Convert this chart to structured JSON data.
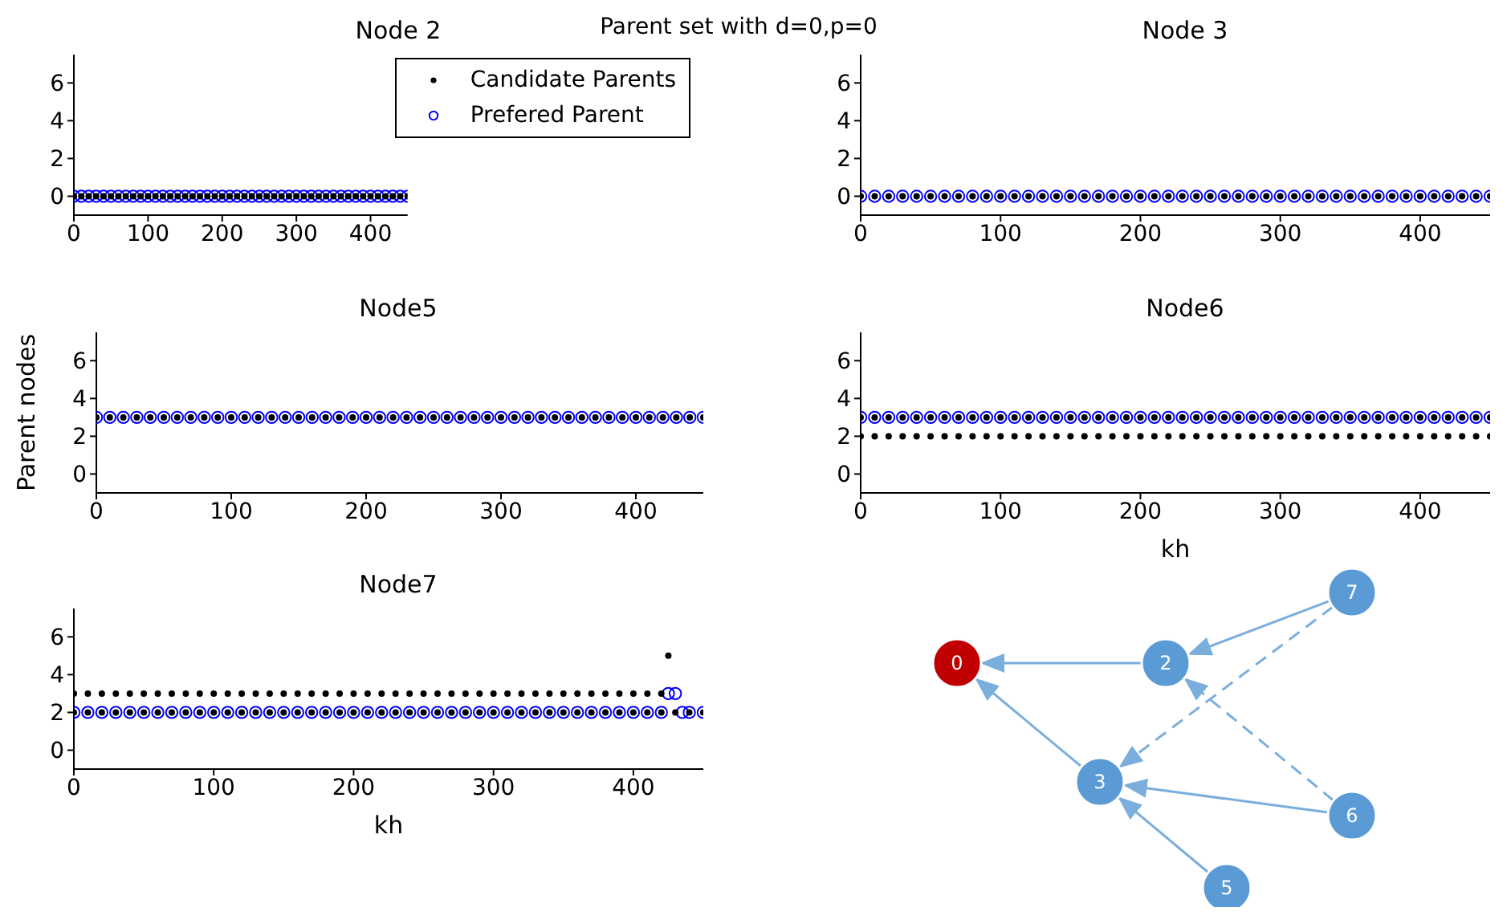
{
  "chart_data": [
    {
      "type": "scatter",
      "title": "Node 2",
      "annotations": [
        "Parent set with d=0,p=0"
      ],
      "xlim": [
        0,
        450
      ],
      "xticks": [
        0,
        100,
        200,
        300,
        400
      ],
      "ylim": [
        -1,
        7.5
      ],
      "yticks": [
        0,
        2,
        4,
        6
      ],
      "legend": "top right",
      "series": [
        {
          "name": "Candidate Parents",
          "color": "#000000",
          "x": [
            0,
            10,
            20,
            30,
            40,
            50,
            60,
            70,
            80,
            90,
            100,
            110,
            120,
            130,
            140,
            150,
            160,
            170,
            180,
            190,
            200,
            210,
            220,
            230,
            240,
            250,
            260,
            270,
            280,
            290,
            300,
            310,
            320,
            330,
            340,
            350,
            360,
            370,
            380,
            390,
            400,
            410,
            420,
            430,
            440,
            450
          ],
          "values": [
            0,
            0,
            0,
            0,
            0,
            0,
            0,
            0,
            0,
            0,
            0,
            0,
            0,
            0,
            0,
            0,
            0,
            0,
            0,
            0,
            0,
            0,
            0,
            0,
            0,
            0,
            0,
            0,
            0,
            0,
            0,
            0,
            0,
            0,
            0,
            0,
            0,
            0,
            0,
            0,
            0,
            0,
            0,
            0,
            0,
            0
          ]
        },
        {
          "name": "Prefered Parent",
          "color": "#0000ff",
          "x": [
            0,
            10,
            20,
            30,
            40,
            50,
            60,
            70,
            80,
            90,
            100,
            110,
            120,
            130,
            140,
            150,
            160,
            170,
            180,
            190,
            200,
            210,
            220,
            230,
            240,
            250,
            260,
            270,
            280,
            290,
            300,
            310,
            320,
            330,
            340,
            350,
            360,
            370,
            380,
            390,
            400,
            410,
            420,
            430,
            440,
            450
          ],
          "values": [
            0,
            0,
            0,
            0,
            0,
            0,
            0,
            0,
            0,
            0,
            0,
            0,
            0,
            0,
            0,
            0,
            0,
            0,
            0,
            0,
            0,
            0,
            0,
            0,
            0,
            0,
            0,
            0,
            0,
            0,
            0,
            0,
            0,
            0,
            0,
            0,
            0,
            0,
            0,
            0,
            0,
            0,
            0,
            0,
            0,
            0
          ]
        }
      ]
    },
    {
      "type": "scatter",
      "title": "Node 3",
      "xlim": [
        0,
        450
      ],
      "xticks": [
        0,
        100,
        200,
        300,
        400
      ],
      "ylim": [
        -1,
        7.5
      ],
      "yticks": [
        0,
        2,
        4,
        6
      ],
      "series": [
        {
          "color": "#000000",
          "x": [
            0,
            10,
            20,
            30,
            40,
            50,
            60,
            70,
            80,
            90,
            100,
            110,
            120,
            130,
            140,
            150,
            160,
            170,
            180,
            190,
            200,
            210,
            220,
            230,
            240,
            250,
            260,
            270,
            280,
            290,
            300,
            310,
            320,
            330,
            340,
            350,
            360,
            370,
            380,
            390,
            400,
            410,
            420,
            430,
            440,
            450
          ],
          "values": [
            0,
            0,
            0,
            0,
            0,
            0,
            0,
            0,
            0,
            0,
            0,
            0,
            0,
            0,
            0,
            0,
            0,
            0,
            0,
            0,
            0,
            0,
            0,
            0,
            0,
            0,
            0,
            0,
            0,
            0,
            0,
            0,
            0,
            0,
            0,
            0,
            0,
            0,
            0,
            0,
            0,
            0,
            0,
            0,
            0,
            0
          ]
        },
        {
          "color": "#0000ff",
          "x": [
            0,
            10,
            20,
            30,
            40,
            50,
            60,
            70,
            80,
            90,
            100,
            110,
            120,
            130,
            140,
            150,
            160,
            170,
            180,
            190,
            200,
            210,
            220,
            230,
            240,
            250,
            260,
            270,
            280,
            290,
            300,
            310,
            320,
            330,
            340,
            350,
            360,
            370,
            380,
            390,
            400,
            410,
            420,
            430,
            440,
            450
          ],
          "values": [
            0,
            0,
            0,
            0,
            0,
            0,
            0,
            0,
            0,
            0,
            0,
            0,
            0,
            0,
            0,
            0,
            0,
            0,
            0,
            0,
            0,
            0,
            0,
            0,
            0,
            0,
            0,
            0,
            0,
            0,
            0,
            0,
            0,
            0,
            0,
            0,
            0,
            0,
            0,
            0,
            0,
            0,
            0,
            0,
            0,
            0
          ]
        }
      ]
    },
    {
      "type": "scatter",
      "title": "Node5",
      "ylabel": "Parent nodes",
      "xlim": [
        0,
        450
      ],
      "xticks": [
        0,
        100,
        200,
        300,
        400
      ],
      "ylim": [
        -1,
        7.5
      ],
      "yticks": [
        0,
        2,
        4,
        6
      ],
      "series": [
        {
          "color": "#000000",
          "x": [
            0,
            10,
            20,
            30,
            40,
            50,
            60,
            70,
            80,
            90,
            100,
            110,
            120,
            130,
            140,
            150,
            160,
            170,
            180,
            190,
            200,
            210,
            220,
            230,
            240,
            250,
            260,
            270,
            280,
            290,
            300,
            310,
            320,
            330,
            340,
            350,
            360,
            370,
            380,
            390,
            400,
            410,
            420,
            430,
            440,
            450
          ],
          "values": [
            3,
            3,
            3,
            3,
            3,
            3,
            3,
            3,
            3,
            3,
            3,
            3,
            3,
            3,
            3,
            3,
            3,
            3,
            3,
            3,
            3,
            3,
            3,
            3,
            3,
            3,
            3,
            3,
            3,
            3,
            3,
            3,
            3,
            3,
            3,
            3,
            3,
            3,
            3,
            3,
            3,
            3,
            3,
            3,
            3,
            3
          ]
        },
        {
          "color": "#0000ff",
          "x": [
            0,
            10,
            20,
            30,
            40,
            50,
            60,
            70,
            80,
            90,
            100,
            110,
            120,
            130,
            140,
            150,
            160,
            170,
            180,
            190,
            200,
            210,
            220,
            230,
            240,
            250,
            260,
            270,
            280,
            290,
            300,
            310,
            320,
            330,
            340,
            350,
            360,
            370,
            380,
            390,
            400,
            410,
            420,
            430,
            440,
            450
          ],
          "values": [
            3,
            3,
            3,
            3,
            3,
            3,
            3,
            3,
            3,
            3,
            3,
            3,
            3,
            3,
            3,
            3,
            3,
            3,
            3,
            3,
            3,
            3,
            3,
            3,
            3,
            3,
            3,
            3,
            3,
            3,
            3,
            3,
            3,
            3,
            3,
            3,
            3,
            3,
            3,
            3,
            3,
            3,
            3,
            3,
            3,
            3
          ]
        }
      ]
    },
    {
      "type": "scatter",
      "title": "Node6",
      "xlabel": "kh",
      "xlim": [
        0,
        450
      ],
      "xticks": [
        0,
        100,
        200,
        300,
        400
      ],
      "ylim": [
        -1,
        7.5
      ],
      "yticks": [
        0,
        2,
        4,
        6
      ],
      "series": [
        {
          "color": "#000000",
          "x": [
            0,
            10,
            20,
            30,
            40,
            50,
            60,
            70,
            80,
            90,
            100,
            110,
            120,
            130,
            140,
            150,
            160,
            170,
            180,
            190,
            200,
            210,
            220,
            230,
            240,
            250,
            260,
            270,
            280,
            290,
            300,
            310,
            320,
            330,
            340,
            350,
            360,
            370,
            380,
            390,
            400,
            410,
            420,
            430,
            440,
            450,
            0,
            10,
            20,
            30,
            40,
            50,
            60,
            70,
            80,
            90,
            100,
            110,
            120,
            130,
            140,
            150,
            160,
            170,
            180,
            190,
            200,
            210,
            220,
            230,
            240,
            250,
            260,
            270,
            280,
            290,
            300,
            310,
            320,
            330,
            340,
            350,
            360,
            370,
            380,
            390,
            400,
            410,
            420,
            430,
            440,
            450
          ],
          "values": [
            2,
            2,
            2,
            2,
            2,
            2,
            2,
            2,
            2,
            2,
            2,
            2,
            2,
            2,
            2,
            2,
            2,
            2,
            2,
            2,
            2,
            2,
            2,
            2,
            2,
            2,
            2,
            2,
            2,
            2,
            2,
            2,
            2,
            2,
            2,
            2,
            2,
            2,
            2,
            2,
            2,
            2,
            2,
            2,
            2,
            2,
            3,
            3,
            3,
            3,
            3,
            3,
            3,
            3,
            3,
            3,
            3,
            3,
            3,
            3,
            3,
            3,
            3,
            3,
            3,
            3,
            3,
            3,
            3,
            3,
            3,
            3,
            3,
            3,
            3,
            3,
            3,
            3,
            3,
            3,
            3,
            3,
            3,
            3,
            3,
            3,
            3,
            3,
            3,
            3,
            3,
            3
          ]
        },
        {
          "color": "#0000ff",
          "x": [
            0,
            10,
            20,
            30,
            40,
            50,
            60,
            70,
            80,
            90,
            100,
            110,
            120,
            130,
            140,
            150,
            160,
            170,
            180,
            190,
            200,
            210,
            220,
            230,
            240,
            250,
            260,
            270,
            280,
            290,
            300,
            310,
            320,
            330,
            340,
            350,
            360,
            370,
            380,
            390,
            400,
            410,
            420,
            430,
            440,
            450
          ],
          "values": [
            3,
            3,
            3,
            3,
            3,
            3,
            3,
            3,
            3,
            3,
            3,
            3,
            3,
            3,
            3,
            3,
            3,
            3,
            3,
            3,
            3,
            3,
            3,
            3,
            3,
            3,
            3,
            3,
            3,
            3,
            3,
            3,
            3,
            3,
            3,
            3,
            3,
            3,
            3,
            3,
            3,
            3,
            3,
            3,
            3,
            3
          ]
        }
      ]
    },
    {
      "type": "scatter",
      "title": "Node7",
      "xlabel": "kh",
      "xlim": [
        0,
        450
      ],
      "xticks": [
        0,
        100,
        200,
        300,
        400
      ],
      "ylim": [
        -1,
        7.5
      ],
      "yticks": [
        0,
        2,
        4,
        6
      ],
      "series": [
        {
          "color": "#000000",
          "x": [
            0,
            10,
            20,
            30,
            40,
            50,
            60,
            70,
            80,
            90,
            100,
            110,
            120,
            130,
            140,
            150,
            160,
            170,
            180,
            190,
            200,
            210,
            220,
            230,
            240,
            250,
            260,
            270,
            280,
            290,
            300,
            310,
            320,
            330,
            340,
            350,
            360,
            370,
            380,
            390,
            400,
            410,
            420,
            0,
            10,
            20,
            30,
            40,
            50,
            60,
            70,
            80,
            90,
            100,
            110,
            120,
            130,
            140,
            150,
            160,
            170,
            180,
            190,
            200,
            210,
            220,
            230,
            240,
            250,
            260,
            270,
            280,
            290,
            300,
            310,
            320,
            330,
            340,
            350,
            360,
            370,
            380,
            390,
            400,
            410,
            420,
            430,
            440,
            450,
            425
          ],
          "values": [
            3,
            3,
            3,
            3,
            3,
            3,
            3,
            3,
            3,
            3,
            3,
            3,
            3,
            3,
            3,
            3,
            3,
            3,
            3,
            3,
            3,
            3,
            3,
            3,
            3,
            3,
            3,
            3,
            3,
            3,
            3,
            3,
            3,
            3,
            3,
            3,
            3,
            3,
            3,
            3,
            3,
            3,
            3,
            2,
            2,
            2,
            2,
            2,
            2,
            2,
            2,
            2,
            2,
            2,
            2,
            2,
            2,
            2,
            2,
            2,
            2,
            2,
            2,
            2,
            2,
            2,
            2,
            2,
            2,
            2,
            2,
            2,
            2,
            2,
            2,
            2,
            2,
            2,
            2,
            2,
            2,
            2,
            2,
            2,
            2,
            2,
            2,
            2,
            2,
            5
          ]
        },
        {
          "color": "#0000ff",
          "x": [
            0,
            10,
            20,
            30,
            40,
            50,
            60,
            70,
            80,
            90,
            100,
            110,
            120,
            130,
            140,
            150,
            160,
            170,
            180,
            190,
            200,
            210,
            220,
            230,
            240,
            250,
            260,
            270,
            280,
            290,
            300,
            310,
            320,
            330,
            340,
            350,
            360,
            370,
            380,
            390,
            400,
            410,
            420,
            425,
            430,
            435,
            440,
            450
          ],
          "values": [
            2,
            2,
            2,
            2,
            2,
            2,
            2,
            2,
            2,
            2,
            2,
            2,
            2,
            2,
            2,
            2,
            2,
            2,
            2,
            2,
            2,
            2,
            2,
            2,
            2,
            2,
            2,
            2,
            2,
            2,
            2,
            2,
            2,
            2,
            2,
            2,
            2,
            2,
            2,
            2,
            2,
            2,
            2,
            3,
            3,
            2,
            2,
            2
          ]
        }
      ]
    },
    {
      "type": "other",
      "categories": [
        "0",
        "2",
        "3",
        "5",
        "6",
        "7"
      ],
      "colors": [
        "#c00000",
        "#5b9bd5",
        "#5b9bd5",
        "#5b9bd5",
        "#5b9bd5",
        "#5b9bd5"
      ]
    }
  ]
}
